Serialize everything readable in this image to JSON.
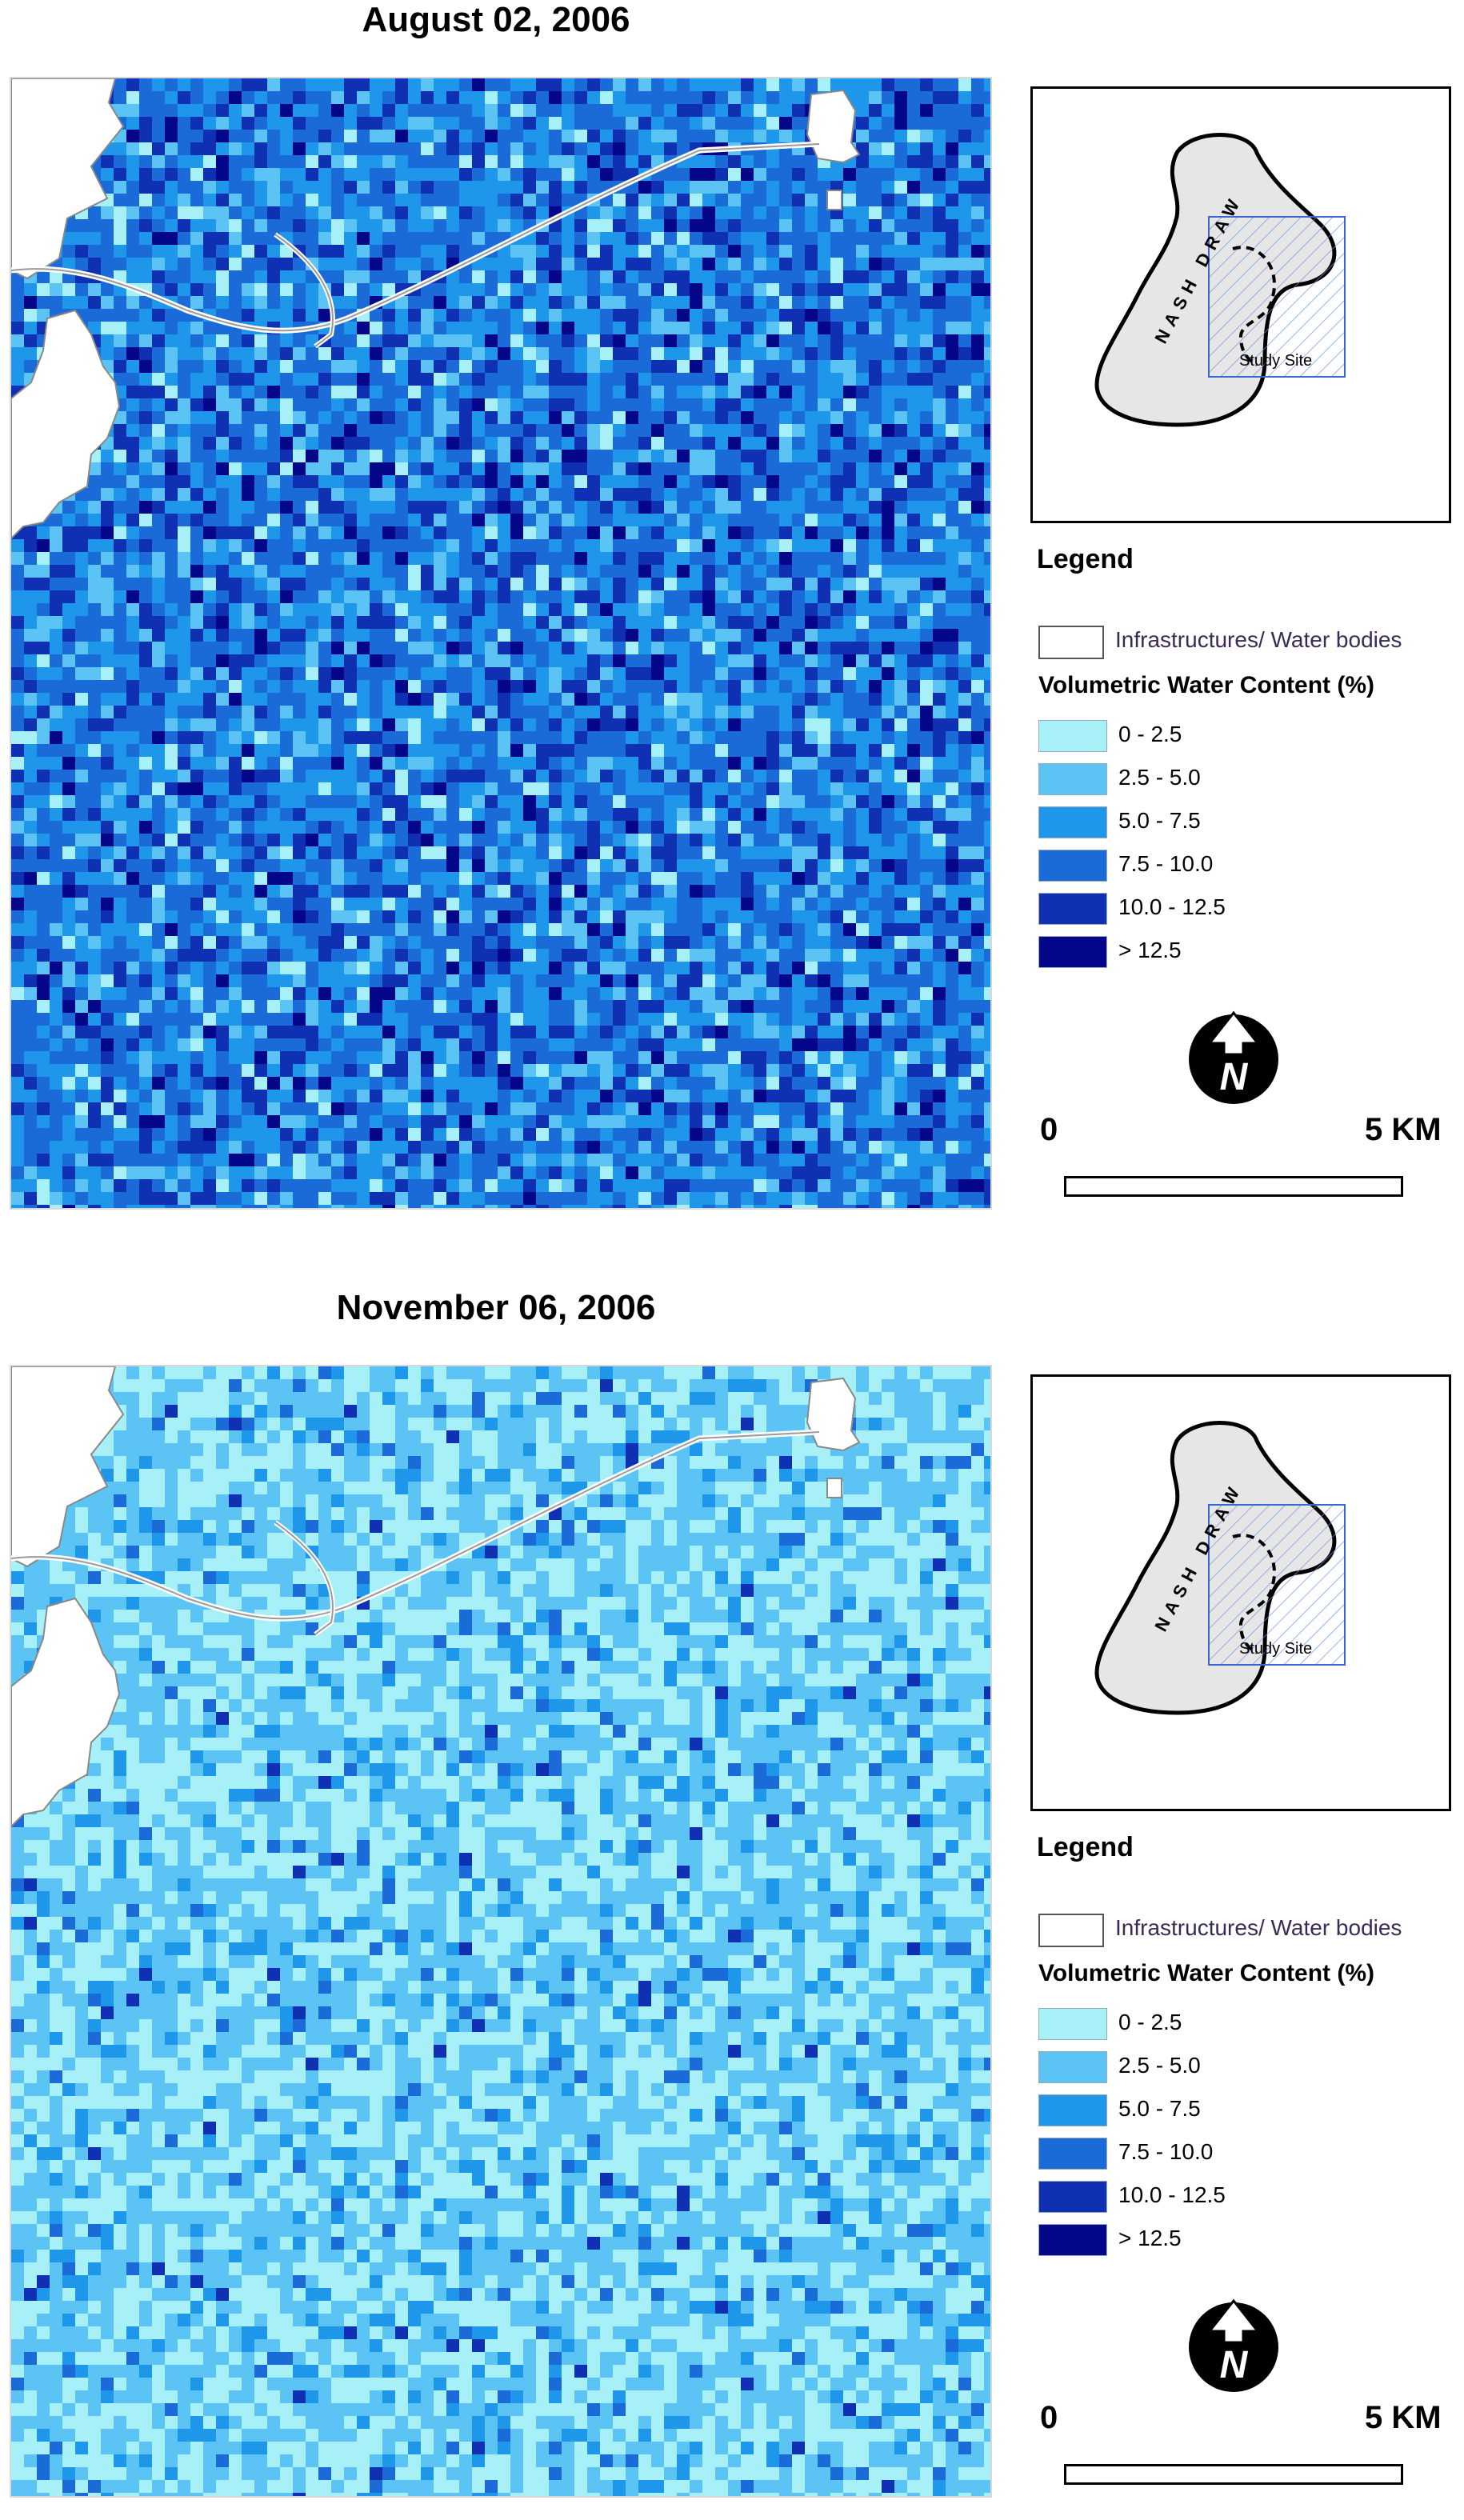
{
  "legend_classes": [
    {
      "label": "0 - 2.5",
      "color": "#a8f0f8"
    },
    {
      "label": "2.5 - 5.0",
      "color": "#5cc4f4"
    },
    {
      "label": "5.0 - 7.5",
      "color": "#1e96ea"
    },
    {
      "label": "7.5 - 10.0",
      "color": "#1a6ad8"
    },
    {
      "label": "10.0 - 12.5",
      "color": "#1030b4"
    },
    {
      "label": "> 12.5",
      "color": "#04068a"
    }
  ],
  "panels": [
    {
      "title": "August 02, 2006",
      "class_shares": [
        0.05,
        0.12,
        0.28,
        0.35,
        0.15,
        0.05
      ],
      "inset": {
        "draw_label": "NASH DRAW",
        "study_label": "Study Site"
      },
      "legend": {
        "title": "Legend",
        "infrastructure_label": "Infrastructures/ Water bodies",
        "vwc_title": "Volumetric Water Content (%)",
        "classes": [
          "0 - 2.5",
          "2.5 - 5.0",
          "5.0 - 7.5",
          "7.5 - 10.0",
          "10.0 - 12.5",
          "> 12.5"
        ]
      },
      "north_label": "N",
      "scale": {
        "min_label": "0",
        "max_label": "5 KM"
      }
    },
    {
      "title": "November 06, 2006",
      "class_shares": [
        0.4,
        0.45,
        0.1,
        0.04,
        0.01,
        0.0
      ],
      "inset": {
        "draw_label": "NASH DRAW",
        "study_label": "Study Site"
      },
      "legend": {
        "title": "Legend",
        "infrastructure_label": "Infrastructures/ Water bodies",
        "vwc_title": "Volumetric Water Content (%)",
        "classes": [
          "0 - 2.5",
          "2.5 - 5.0",
          "5.0 - 7.5",
          "7.5 - 10.0",
          "10.0 - 12.5",
          "> 12.5"
        ]
      },
      "north_label": "N",
      "scale": {
        "min_label": "0",
        "max_label": "5 KM"
      }
    }
  ]
}
